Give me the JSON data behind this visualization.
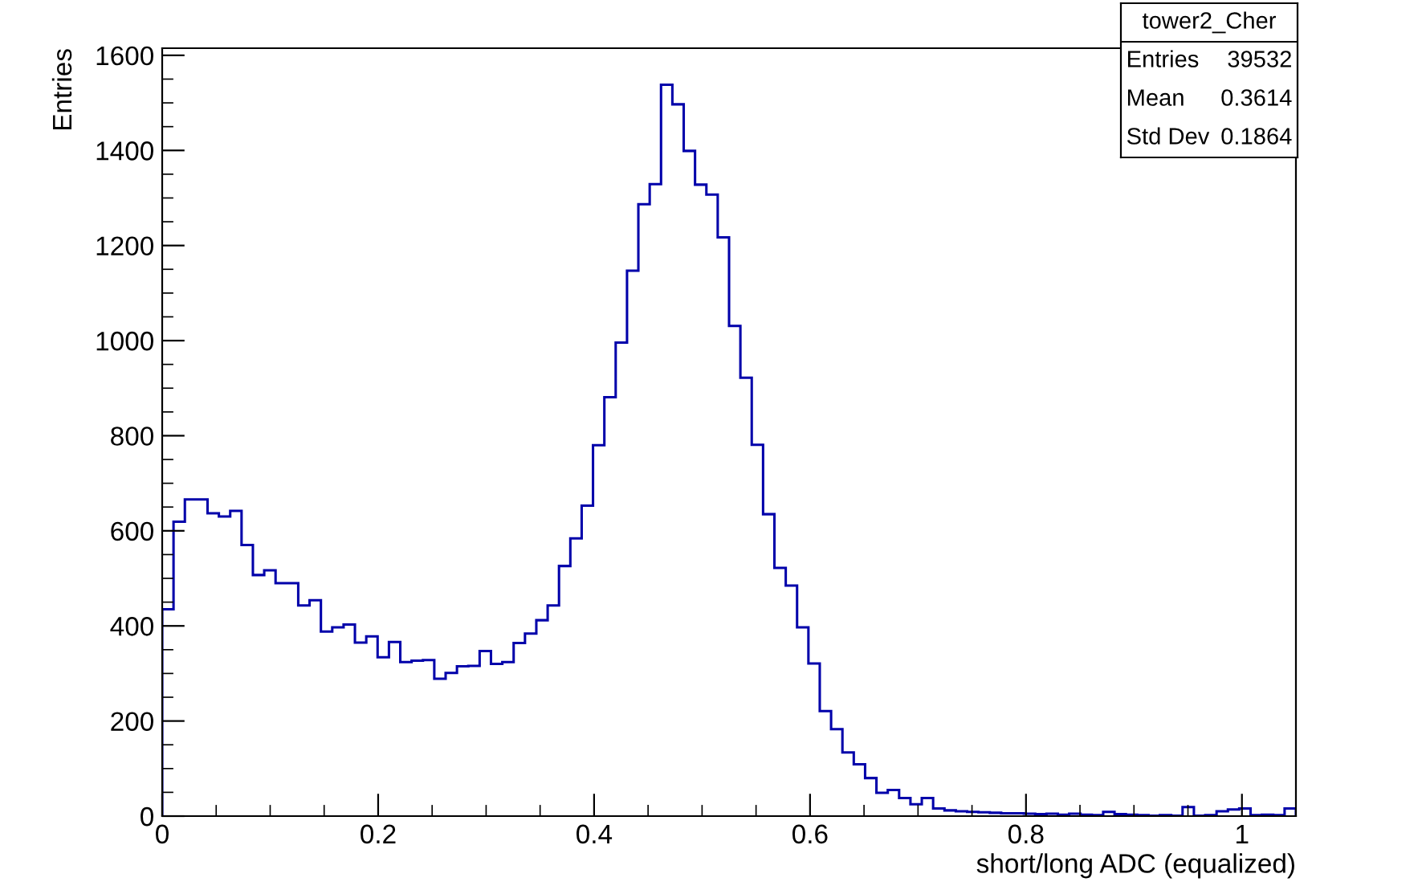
{
  "chart_data": {
    "type": "histogram",
    "xlabel": "short/long ADC (equalized)",
    "ylabel": "Entries",
    "color": "#0000aa",
    "bins": [
      0,
      0.0105,
      0.021,
      0.0315,
      0.042,
      0.0525,
      0.063,
      0.0735,
      0.084,
      0.0945,
      0.105,
      0.1155,
      0.126,
      0.1365,
      0.147,
      0.1575,
      0.168,
      0.1785,
      0.189,
      0.1995,
      0.21,
      0.2205,
      0.231,
      0.2415,
      0.252,
      0.2625,
      0.273,
      0.2835,
      0.294,
      0.3045,
      0.315,
      0.3255,
      0.336,
      0.3465,
      0.357,
      0.3675,
      0.378,
      0.3885,
      0.399,
      0.4095,
      0.42,
      0.4305,
      0.441,
      0.4515,
      0.462,
      0.4725,
      0.483,
      0.4935,
      0.504,
      0.5145,
      0.525,
      0.5355,
      0.546,
      0.5565,
      0.567,
      0.5775,
      0.588,
      0.5985,
      0.609,
      0.6195,
      0.63,
      0.6405,
      0.651,
      0.6615,
      0.672,
      0.6825,
      0.693,
      0.7035,
      0.714,
      0.7245,
      0.735,
      0.7455,
      0.756,
      0.7665,
      0.777,
      0.7875,
      0.798,
      0.8085,
      0.819,
      0.8295,
      0.84,
      0.8505,
      0.861,
      0.8715,
      0.882,
      0.8925,
      0.903,
      0.9135,
      0.924,
      0.9345,
      0.945,
      0.9555,
      0.966,
      0.9765,
      0.987,
      0.9975,
      1.008,
      1.0185,
      1.029,
      1.0395,
      1.05
    ],
    "values": [
      435,
      619,
      666,
      666,
      637,
      630,
      642,
      570,
      507,
      517,
      490,
      490,
      443,
      454,
      388,
      397,
      403,
      365,
      378,
      334,
      366,
      324,
      327,
      328,
      289,
      301,
      315,
      316,
      347,
      320,
      324,
      364,
      384,
      412,
      443,
      526,
      584,
      653,
      780,
      881,
      996,
      1147,
      1287,
      1329,
      1538,
      1497,
      1399,
      1328,
      1307,
      1217,
      1031,
      922,
      781,
      635,
      522,
      485,
      397,
      321,
      221,
      183,
      134,
      109,
      80,
      49,
      55,
      38,
      25,
      38,
      16,
      12,
      10,
      9,
      8,
      7,
      6,
      6,
      5,
      4,
      5,
      3,
      5,
      3,
      2,
      9,
      4,
      3,
      2,
      1,
      2,
      1,
      19,
      1,
      2,
      10,
      14,
      16,
      2,
      3,
      2,
      16
    ],
    "xlim": [
      0,
      1.05
    ],
    "ylim": [
      0,
      1615
    ],
    "xticks": [
      0,
      0.2,
      0.4,
      0.6,
      0.8,
      1
    ],
    "yticks": [
      0,
      200,
      400,
      600,
      800,
      1000,
      1200,
      1400,
      1600
    ],
    "grid": false,
    "legend": false,
    "annotations": [
      "tower2_Cher",
      "Entries",
      "39532",
      "Mean",
      "0.3614",
      "Std Dev",
      "0.1864"
    ]
  }
}
